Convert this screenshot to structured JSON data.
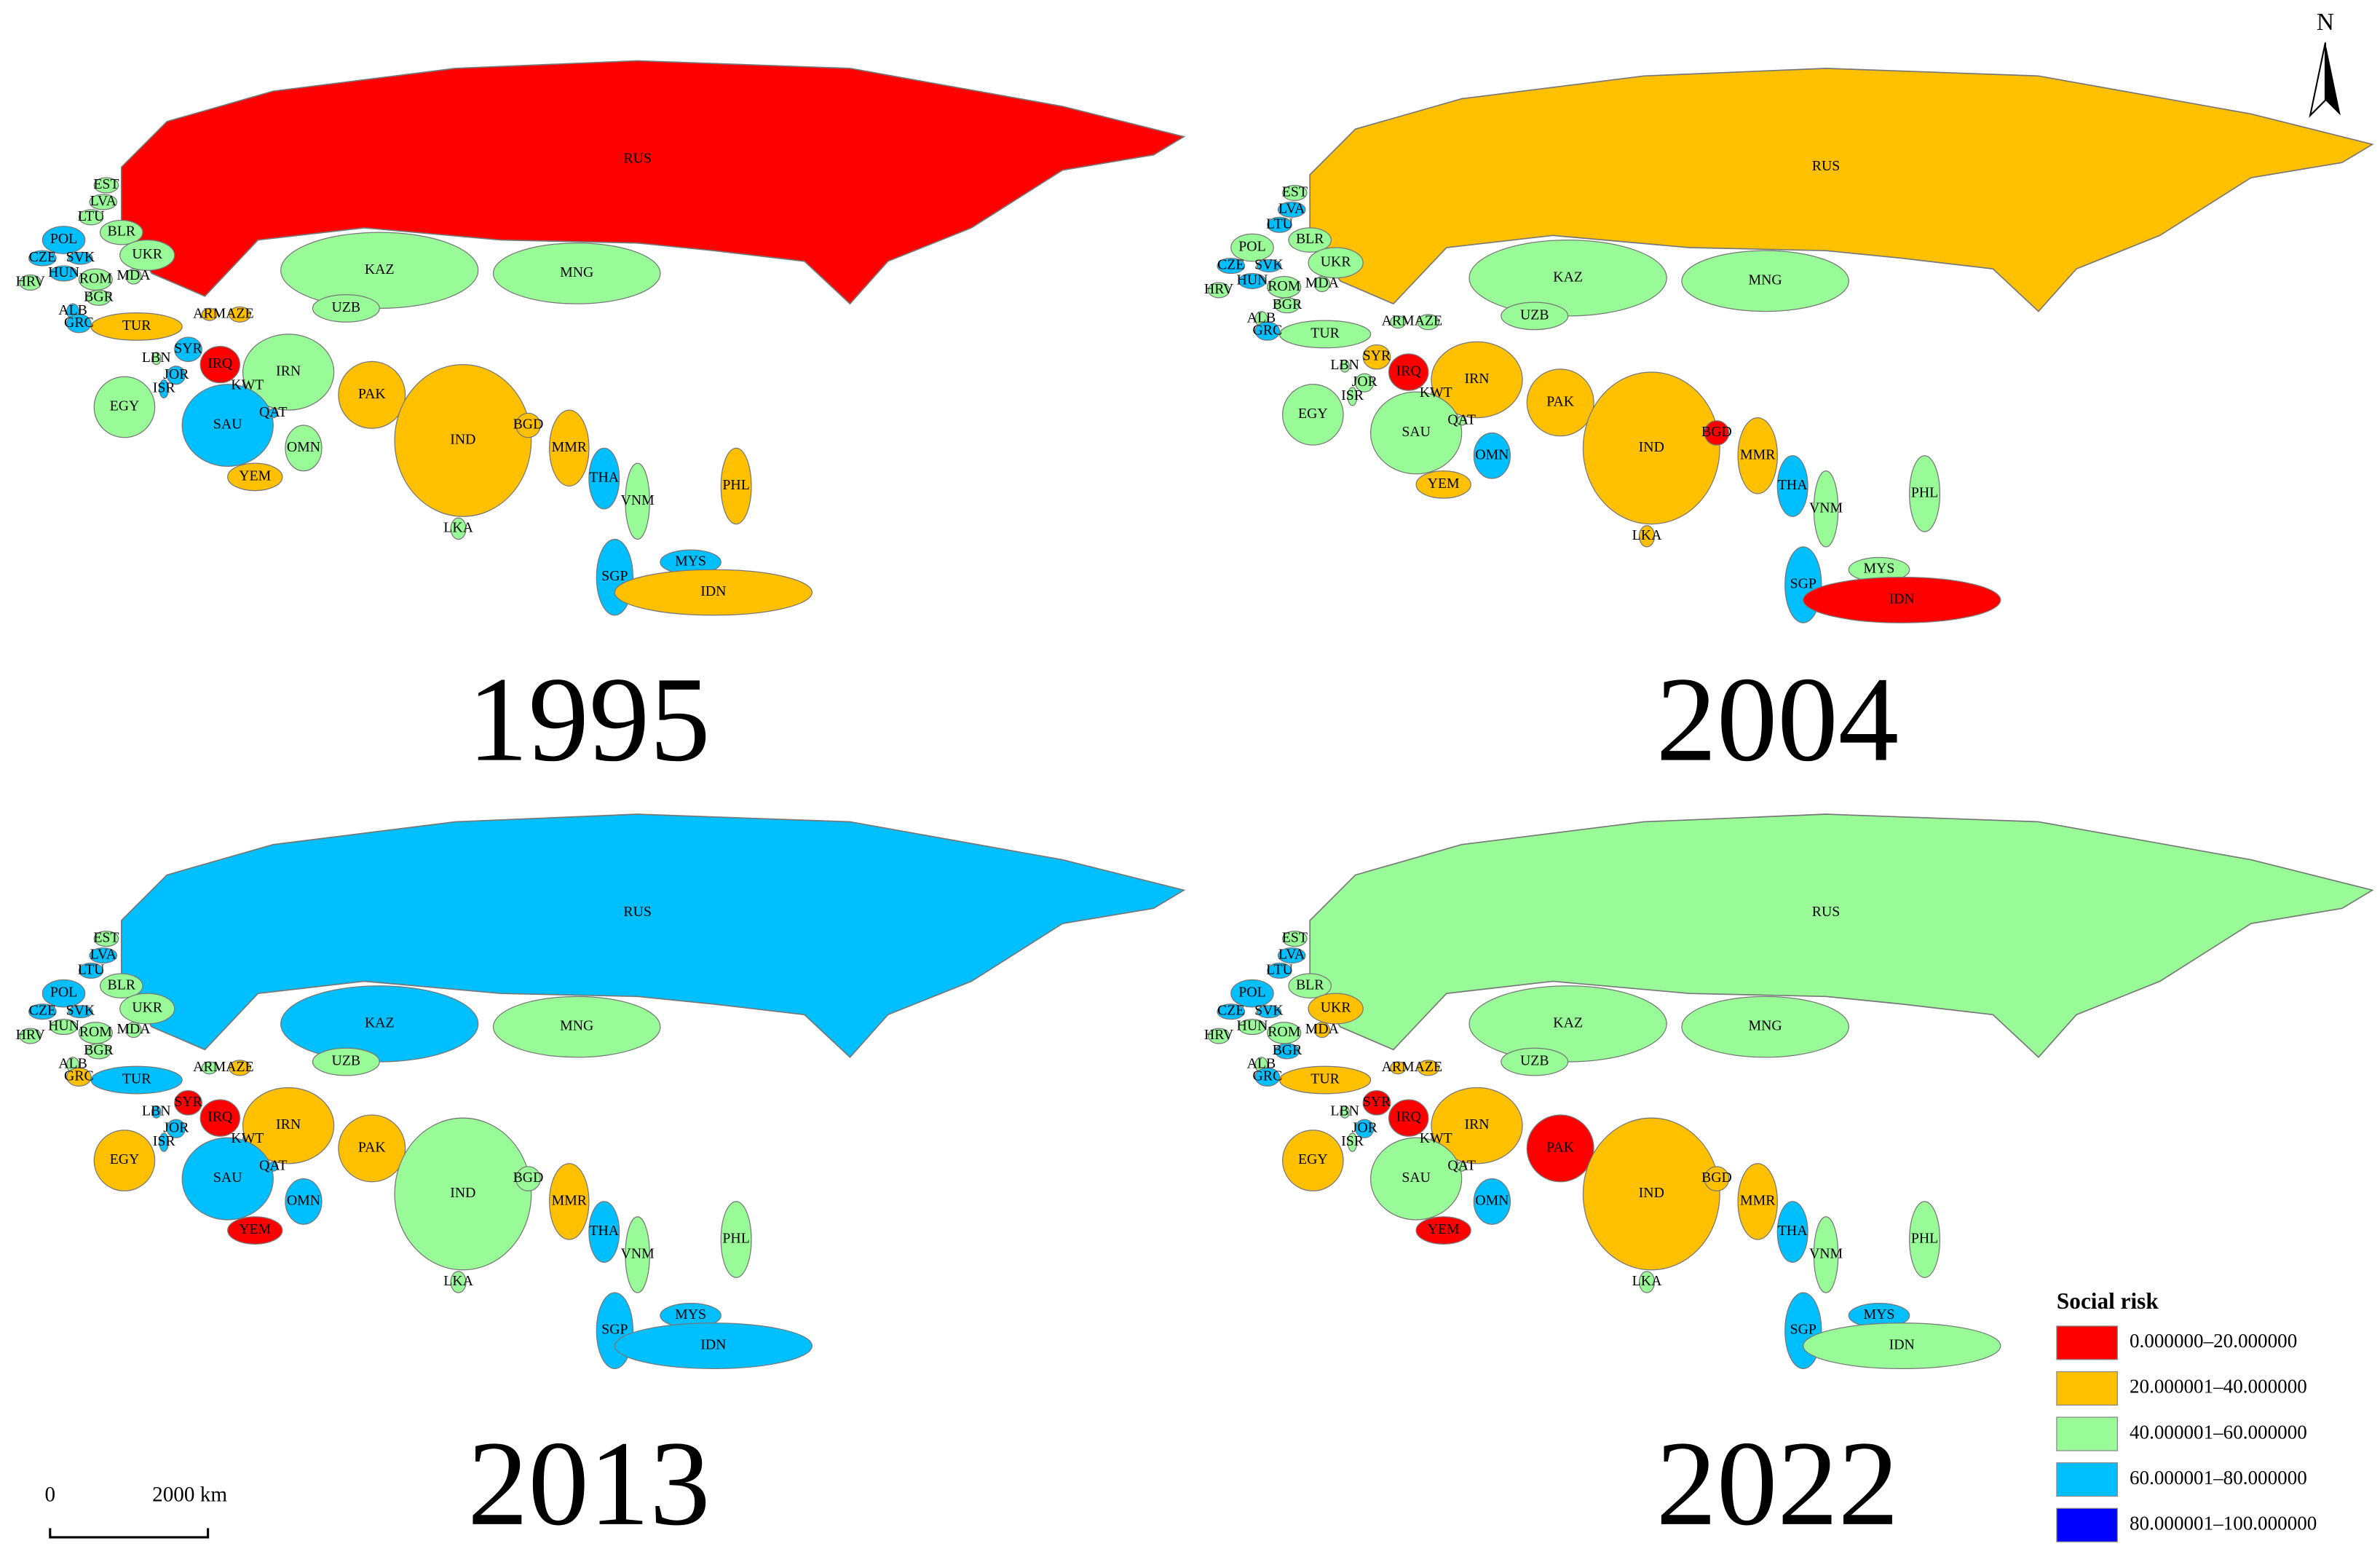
{
  "north": "N",
  "scale_bar": {
    "start": "0",
    "end": "2000 km"
  },
  "legend": {
    "title": "Social risk",
    "items": [
      {
        "label": "0.000000–20.000000",
        "color": "#ff0000"
      },
      {
        "label": "20.000001–40.000000",
        "color": "#ffc000"
      },
      {
        "label": "40.000001–60.000000",
        "color": "#98fb98"
      },
      {
        "label": "60.000001–80.000000",
        "color": "#00bfff"
      },
      {
        "label": "80.000001–100.000000",
        "color": "#0000ff"
      }
    ]
  },
  "maps": [
    {
      "year": "1995",
      "codes": [
        "RUS",
        "EST",
        "LVA",
        "LTU",
        "BLR",
        "POL",
        "CZE",
        "SVK",
        "HUN",
        "HRV",
        "ROM",
        "MDA",
        "UKR",
        "BGR",
        "ALB",
        "GRC",
        "TUR",
        "ARM",
        "AZE",
        "KAZ",
        "MNG",
        "UZB",
        "SYR",
        "LBN",
        "JOR",
        "ISR",
        "IRQ",
        "KWT",
        "IRN",
        "EGY",
        "SAU",
        "QAT",
        "OMN",
        "YEM",
        "PAK",
        "IND",
        "BGD",
        "MMR",
        "THA",
        "VNM",
        "LKA",
        "PHL",
        "MYS",
        "SGP",
        "IDN"
      ],
      "colors": [
        "#ff0000",
        "#98fb98",
        "#98fb98",
        "#98fb98",
        "#98fb98",
        "#00bfff",
        "#00bfff",
        "#00bfff",
        "#00bfff",
        "#98fb98",
        "#98fb98",
        "#98fb98",
        "#98fb98",
        "#98fb98",
        "#00bfff",
        "#00bfff",
        "#ffc000",
        "#ffc000",
        "#ffc000",
        "#98fb98",
        "#98fb98",
        "#98fb98",
        "#00bfff",
        "#98fb98",
        "#00bfff",
        "#00bfff",
        "#ff0000",
        "#00bfff",
        "#98fb98",
        "#98fb98",
        "#00bfff",
        "#00bfff",
        "#98fb98",
        "#ffc000",
        "#ffc000",
        "#ffc000",
        "#ffc000",
        "#ffc000",
        "#00bfff",
        "#98fb98",
        "#98fb98",
        "#ffc000",
        "#00bfff",
        "#00bfff",
        "#ffc000"
      ]
    },
    {
      "year": "2004",
      "codes": [
        "RUS",
        "EST",
        "LVA",
        "LTU",
        "BLR",
        "POL",
        "CZE",
        "SVK",
        "HUN",
        "HRV",
        "ROM",
        "MDA",
        "UKR",
        "BGR",
        "ALB",
        "GRC",
        "TUR",
        "ARM",
        "AZE",
        "KAZ",
        "MNG",
        "UZB",
        "SYR",
        "LBN",
        "JOR",
        "ISR",
        "IRQ",
        "KWT",
        "IRN",
        "EGY",
        "SAU",
        "QAT",
        "OMN",
        "YEM",
        "PAK",
        "IND",
        "BGD",
        "MMR",
        "THA",
        "VNM",
        "LKA",
        "PHL",
        "MYS",
        "SGP",
        "IDN"
      ],
      "colors": [
        "#ffc000",
        "#98fb98",
        "#00bfff",
        "#00bfff",
        "#98fb98",
        "#98fb98",
        "#00bfff",
        "#00bfff",
        "#00bfff",
        "#98fb98",
        "#98fb98",
        "#98fb98",
        "#98fb98",
        "#98fb98",
        "#98fb98",
        "#00bfff",
        "#98fb98",
        "#98fb98",
        "#98fb98",
        "#98fb98",
        "#98fb98",
        "#98fb98",
        "#ffc000",
        "#98fb98",
        "#98fb98",
        "#98fb98",
        "#ff0000",
        "#ffc000",
        "#ffc000",
        "#98fb98",
        "#98fb98",
        "#98fb98",
        "#00bfff",
        "#ffc000",
        "#ffc000",
        "#ffc000",
        "#ff0000",
        "#ffc000",
        "#00bfff",
        "#98fb98",
        "#ffc000",
        "#98fb98",
        "#98fb98",
        "#00bfff",
        "#ff0000"
      ]
    },
    {
      "year": "2013",
      "codes": [
        "RUS",
        "EST",
        "LVA",
        "LTU",
        "BLR",
        "POL",
        "CZE",
        "SVK",
        "HUN",
        "HRV",
        "ROM",
        "MDA",
        "UKR",
        "BGR",
        "ALB",
        "GRC",
        "TUR",
        "ARM",
        "AZE",
        "KAZ",
        "MNG",
        "UZB",
        "SYR",
        "LBN",
        "JOR",
        "ISR",
        "IRQ",
        "KWT",
        "IRN",
        "EGY",
        "SAU",
        "QAT",
        "OMN",
        "YEM",
        "PAK",
        "IND",
        "BGD",
        "MMR",
        "THA",
        "VNM",
        "LKA",
        "PHL",
        "MYS",
        "SGP",
        "IDN"
      ],
      "colors": [
        "#00bfff",
        "#98fb98",
        "#00bfff",
        "#00bfff",
        "#98fb98",
        "#00bfff",
        "#00bfff",
        "#00bfff",
        "#98fb98",
        "#98fb98",
        "#98fb98",
        "#98fb98",
        "#98fb98",
        "#98fb98",
        "#98fb98",
        "#ffc000",
        "#00bfff",
        "#98fb98",
        "#ffc000",
        "#00bfff",
        "#98fb98",
        "#98fb98",
        "#ff0000",
        "#00bfff",
        "#00bfff",
        "#00bfff",
        "#ff0000",
        "#00bfff",
        "#ffc000",
        "#ffc000",
        "#00bfff",
        "#00bfff",
        "#00bfff",
        "#ff0000",
        "#ffc000",
        "#98fb98",
        "#98fb98",
        "#ffc000",
        "#00bfff",
        "#98fb98",
        "#98fb98",
        "#98fb98",
        "#00bfff",
        "#00bfff",
        "#00bfff"
      ]
    },
    {
      "year": "2022",
      "codes": [
        "RUS",
        "EST",
        "LVA",
        "LTU",
        "BLR",
        "POL",
        "CZE",
        "SVK",
        "HUN",
        "HRV",
        "ROM",
        "MDA",
        "UKR",
        "BGR",
        "ALB",
        "GRC",
        "TUR",
        "ARM",
        "AZE",
        "KAZ",
        "MNG",
        "UZB",
        "SYR",
        "LBN",
        "JOR",
        "ISR",
        "IRQ",
        "KWT",
        "IRN",
        "EGY",
        "SAU",
        "QAT",
        "OMN",
        "YEM",
        "PAK",
        "IND",
        "BGD",
        "MMR",
        "THA",
        "VNM",
        "LKA",
        "PHL",
        "MYS",
        "SGP",
        "IDN"
      ],
      "colors": [
        "#98fb98",
        "#98fb98",
        "#00bfff",
        "#00bfff",
        "#98fb98",
        "#00bfff",
        "#00bfff",
        "#00bfff",
        "#98fb98",
        "#98fb98",
        "#98fb98",
        "#ffc000",
        "#ffc000",
        "#00bfff",
        "#98fb98",
        "#00bfff",
        "#ffc000",
        "#ffc000",
        "#ffc000",
        "#98fb98",
        "#98fb98",
        "#98fb98",
        "#ff0000",
        "#98fb98",
        "#00bfff",
        "#98fb98",
        "#ff0000",
        "#ffc000",
        "#ffc000",
        "#ffc000",
        "#98fb98",
        "#98fb98",
        "#00bfff",
        "#ff0000",
        "#ff0000",
        "#ffc000",
        "#ffc000",
        "#ffc000",
        "#00bfff",
        "#98fb98",
        "#98fb98",
        "#98fb98",
        "#00bfff",
        "#00bfff",
        "#98fb98"
      ]
    }
  ]
}
